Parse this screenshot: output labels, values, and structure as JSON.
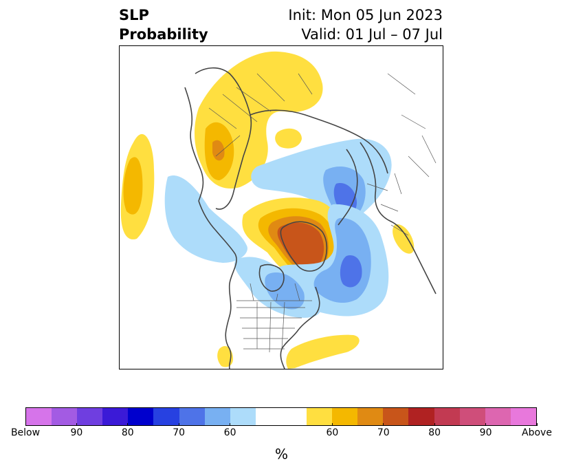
{
  "title": {
    "left_line1": "SLP",
    "left_line2": "Probability",
    "right_line1": "Init: Mon 05 Jun 2023",
    "right_line2": "Valid: 01 Jul – 07 Jul"
  },
  "colorbar": {
    "colors": [
      "#d674ea",
      "#a35be3",
      "#6f3ee0",
      "#3b1ad7",
      "#0000cd",
      "#2741e1",
      "#4e73e8",
      "#78b0f2",
      "#addcfa",
      "#ffffff",
      "#ffffff",
      "#ffdf40",
      "#f4b800",
      "#e08a13",
      "#c8551a",
      "#b02222",
      "#c23a52",
      "#cf4e7a",
      "#dd66b0",
      "#e878dc"
    ],
    "ticks": [
      "Below",
      "90",
      "80",
      "70",
      "60",
      "60",
      "70",
      "80",
      "90",
      "Above"
    ],
    "unit_label": "%"
  },
  "map": {
    "projection": "polar stereographic, North America / Arctic",
    "shading": {
      "light_blue": "#addcfa",
      "mid_blue": "#78b0f2",
      "blue": "#4e73e8",
      "yellow": "#ffdf40",
      "gold": "#f4b800",
      "orange": "#e08a13",
      "rust": "#c8551a"
    }
  }
}
